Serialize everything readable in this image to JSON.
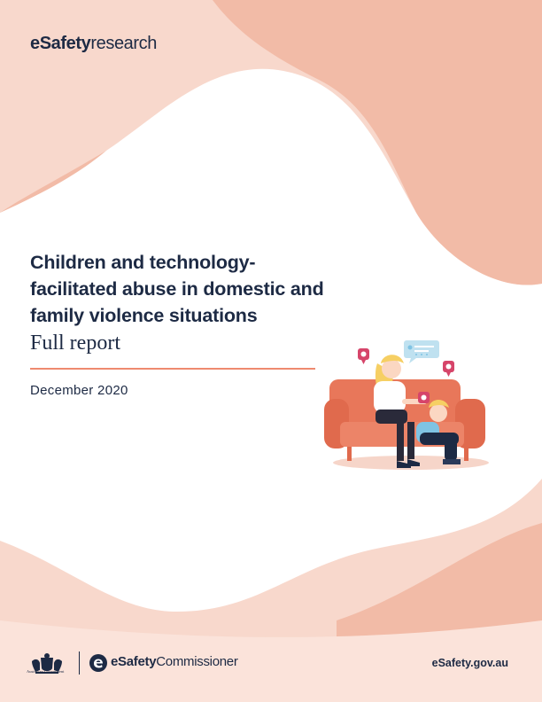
{
  "brand_top": {
    "bold": "eSafety",
    "regular": "research"
  },
  "title": "Children and technology-facilitated abuse in domestic and family violence situations",
  "subtitle": "Full report",
  "date": "December 2020",
  "footer": {
    "gov_label": "Australian Government",
    "commissioner_bold": "eSafety",
    "commissioner_regular": "Commissioner",
    "url": "eSafety.gov.au"
  },
  "colors": {
    "peach_dark": "#f2bba7",
    "peach_light": "#f8d8cc",
    "accent_rule": "#ee8a6f",
    "navy_text": "#1d2a44",
    "sofa": "#e8775a"
  },
  "icons": [
    "coat-of-arms-icon",
    "esafety-logo-icon",
    "chat-bubble-icon",
    "notification-icon"
  ]
}
